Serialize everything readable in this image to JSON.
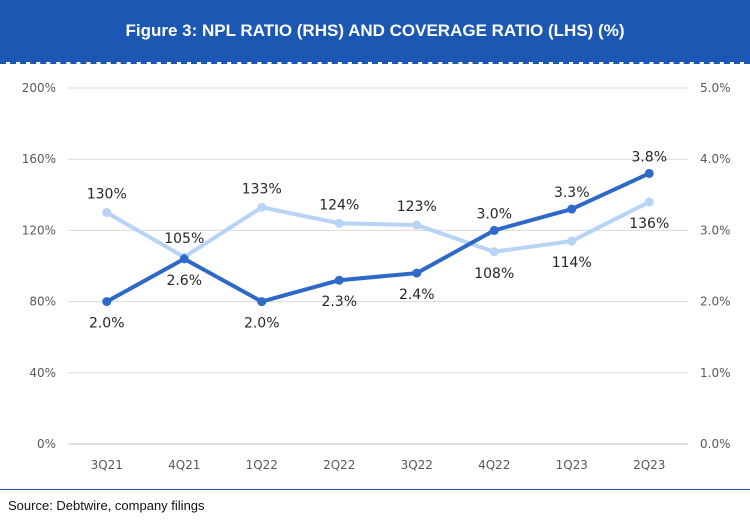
{
  "header": {
    "title": "Figure 3: NPL RATIO (RHS) AND COVERAGE RATIO (LHS) (%)"
  },
  "footer": {
    "source": "Source: Debtwire, company filings"
  },
  "colors": {
    "title_bg": "#1b57b3",
    "npl_line": "#2e68c9",
    "coverage_line": "#b7d3f6"
  },
  "chart_data": {
    "type": "line",
    "title": "",
    "categories": [
      "3Q21",
      "4Q21",
      "1Q22",
      "2Q22",
      "3Q22",
      "4Q22",
      "1Q23",
      "2Q23"
    ],
    "y_left": {
      "min": 0,
      "max": 200,
      "ticks": [
        "0%",
        "40%",
        "80%",
        "120%",
        "160%",
        "200%"
      ]
    },
    "y_right": {
      "min": 0,
      "max": 5,
      "ticks": [
        "0.0%",
        "1.0%",
        "2.0%",
        "3.0%",
        "4.0%",
        "5.0%"
      ]
    },
    "grid": "horizontal",
    "series": [
      {
        "axis": "right",
        "values": [
          2.0,
          2.6,
          2.0,
          2.3,
          2.4,
          3.0,
          3.3,
          3.8
        ],
        "labels": [
          "2.0%",
          "2.6%",
          "2.0%",
          "2.3%",
          "2.4%",
          "3.0%",
          "3.3%",
          "3.8%"
        ]
      },
      {
        "axis": "left",
        "values": [
          130,
          105,
          133,
          124,
          123,
          108,
          114,
          136
        ],
        "labels": [
          "130%",
          "105%",
          "133%",
          "124%",
          "123%",
          "108%",
          "114%",
          "136%"
        ]
      }
    ]
  }
}
